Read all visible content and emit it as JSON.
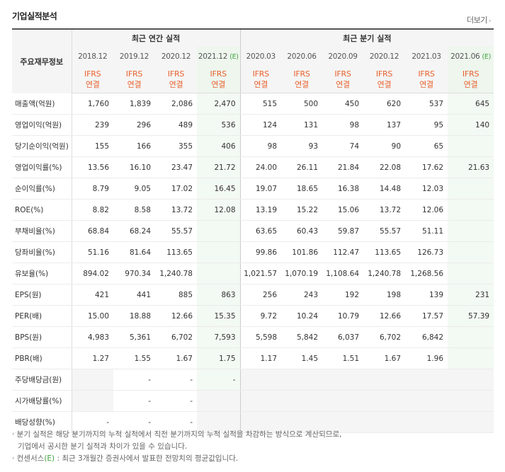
{
  "title": "기업실적분석",
  "more_label": "더보기",
  "corner_label": "주요재무정보",
  "group_annual": "최근 연간 실적",
  "group_quarter": "최근 분기 실적",
  "periods": [
    "2018.12",
    "2019.12",
    "2020.12",
    "2021.12",
    "2020.03",
    "2020.06",
    "2020.09",
    "2020.12",
    "2021.03",
    "2021.06"
  ],
  "estimate_mark": "(E)",
  "ifrs_line1": "IFRS",
  "ifrs_line2": "연결",
  "rows": [
    {
      "label": "매출액(억원)",
      "v": [
        "1,760",
        "1,839",
        "2,086",
        "2,470",
        "515",
        "500",
        "450",
        "620",
        "537",
        "645"
      ]
    },
    {
      "label": "영업이익(억원)",
      "v": [
        "239",
        "296",
        "489",
        "536",
        "124",
        "131",
        "98",
        "137",
        "95",
        "140"
      ]
    },
    {
      "label": "당기순이익(억원)",
      "v": [
        "155",
        "166",
        "355",
        "406",
        "98",
        "93",
        "74",
        "90",
        "65",
        ""
      ]
    },
    {
      "label": "영업이익률(%)",
      "v": [
        "13.56",
        "16.10",
        "23.47",
        "21.72",
        "24.00",
        "26.11",
        "21.84",
        "22.08",
        "17.62",
        "21.63"
      ]
    },
    {
      "label": "순이익률(%)",
      "v": [
        "8.79",
        "9.05",
        "17.02",
        "16.45",
        "19.07",
        "18.65",
        "16.38",
        "14.48",
        "12.03",
        ""
      ]
    },
    {
      "label": "ROE(%)",
      "v": [
        "8.82",
        "8.58",
        "13.72",
        "12.08",
        "13.19",
        "15.22",
        "15.06",
        "13.72",
        "12.06",
        ""
      ]
    },
    {
      "label": "부채비율(%)",
      "v": [
        "68.84",
        "68.24",
        "55.57",
        "",
        "63.65",
        "60.43",
        "59.87",
        "55.57",
        "51.11",
        ""
      ]
    },
    {
      "label": "당좌비율(%)",
      "v": [
        "51.16",
        "81.64",
        "113.65",
        "",
        "99.86",
        "101.86",
        "112.47",
        "113.65",
        "126.73",
        ""
      ]
    },
    {
      "label": "유보율(%)",
      "v": [
        "894.02",
        "970.34",
        "1,240.78",
        "",
        "1,021.57",
        "1,070.19",
        "1,108.64",
        "1,240.78",
        "1,268.56",
        ""
      ]
    },
    {
      "label": "EPS(원)",
      "v": [
        "421",
        "441",
        "885",
        "863",
        "256",
        "243",
        "192",
        "198",
        "139",
        "231"
      ]
    },
    {
      "label": "PER(배)",
      "v": [
        "15.00",
        "18.88",
        "12.66",
        "15.35",
        "9.72",
        "10.24",
        "10.79",
        "12.66",
        "17.57",
        "57.39"
      ]
    },
    {
      "label": "BPS(원)",
      "v": [
        "4,983",
        "5,361",
        "6,702",
        "7,593",
        "5,598",
        "5,842",
        "6,037",
        "6,702",
        "6,842",
        ""
      ]
    },
    {
      "label": "PBR(배)",
      "v": [
        "1.27",
        "1.55",
        "1.67",
        "1.75",
        "1.17",
        "1.45",
        "1.51",
        "1.67",
        "1.96",
        ""
      ]
    },
    {
      "label": "주당배당금(원)",
      "v": [
        "",
        "-",
        "-",
        "-",
        "",
        "",
        "",
        "",
        "",
        ""
      ]
    },
    {
      "label": "시가배당률(%)",
      "v": [
        "",
        "-",
        "-",
        "",
        "",
        "",
        "",
        "",
        "",
        ""
      ]
    },
    {
      "label": "배당성향(%)",
      "v": [
        "-",
        "-",
        "-",
        "",
        "",
        "",
        "",
        "",
        "",
        ""
      ]
    }
  ],
  "group_starts": [
    3,
    6,
    9,
    13
  ],
  "blank_rows_from": 13,
  "notes": {
    "line1": "· 분기 실적은 해당 분기까지의 누적 실적에서 직전 분기까지의 누적 실적을 차감하는 방식으로 계산되므로,",
    "line2": "기업에서 공시한 분기 실적과 차이가 있을 수 있습니다.",
    "line3_pre": "· 컨센서스",
    "line3_e": "(E)",
    "line3_post": " : 최근 3개월간 증권사에서 발표한 전망치의 평균값입니다."
  }
}
